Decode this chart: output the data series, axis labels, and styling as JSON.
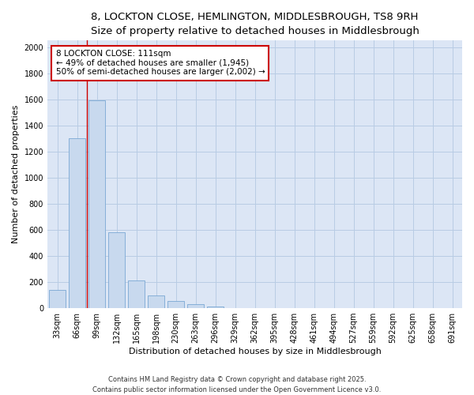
{
  "title_line1": "8, LOCKTON CLOSE, HEMLINGTON, MIDDLESBROUGH, TS8 9RH",
  "title_line2": "Size of property relative to detached houses in Middlesbrough",
  "xlabel": "Distribution of detached houses by size in Middlesbrough",
  "ylabel": "Number of detached properties",
  "categories": [
    "33sqm",
    "66sqm",
    "99sqm",
    "132sqm",
    "165sqm",
    "198sqm",
    "230sqm",
    "263sqm",
    "296sqm",
    "329sqm",
    "362sqm",
    "395sqm",
    "428sqm",
    "461sqm",
    "494sqm",
    "527sqm",
    "559sqm",
    "592sqm",
    "625sqm",
    "658sqm",
    "691sqm"
  ],
  "values": [
    140,
    1300,
    1590,
    580,
    215,
    100,
    55,
    30,
    10,
    0,
    0,
    0,
    0,
    0,
    0,
    0,
    0,
    0,
    0,
    0,
    0
  ],
  "bar_color": "#c8d9ee",
  "bar_edge_color": "#7aa8d4",
  "red_line_x": 1.5,
  "annotation_text_line1": "8 LOCKTON CLOSE: 111sqm",
  "annotation_text_line2": "← 49% of detached houses are smaller (1,945)",
  "annotation_text_line3": "50% of semi-detached houses are larger (2,002) →",
  "annotation_box_color": "#ffffff",
  "annotation_box_edge_color": "#cc0000",
  "ylim": [
    0,
    2050
  ],
  "yticks": [
    0,
    200,
    400,
    600,
    800,
    1000,
    1200,
    1400,
    1600,
    1800,
    2000
  ],
  "grid_color": "#b8cce4",
  "background_color": "#dce6f5",
  "footer_line1": "Contains HM Land Registry data © Crown copyright and database right 2025.",
  "footer_line2": "Contains public sector information licensed under the Open Government Licence v3.0.",
  "title_fontsize": 9.5,
  "subtitle_fontsize": 8.5,
  "axis_label_fontsize": 8,
  "tick_fontsize": 7,
  "annotation_fontsize": 7.5,
  "footer_fontsize": 6
}
